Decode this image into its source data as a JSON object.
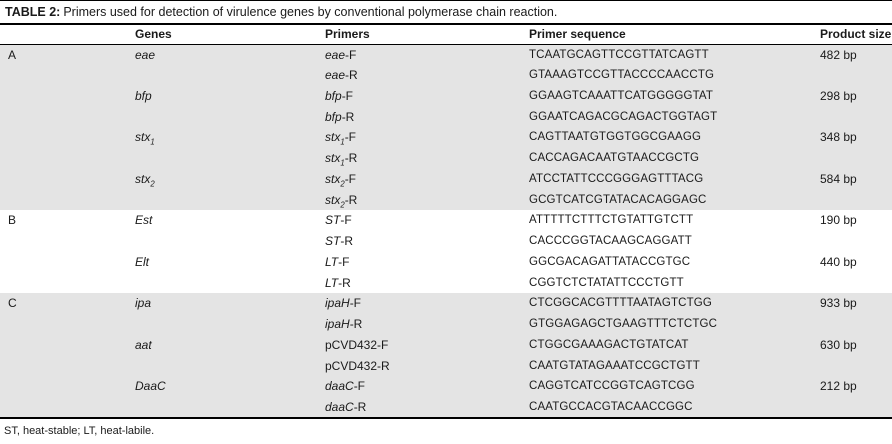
{
  "title": {
    "prefix": "TABLE 2:",
    "text": "Primers used for detection of virulence genes by conventional polymerase chain reaction."
  },
  "colors": {
    "row_shade": "#e4e4e4",
    "rule": "#000000",
    "text": "#1a1a1a"
  },
  "table": {
    "columns": [
      "",
      "Genes",
      "Primers",
      "Primer sequence",
      "Product size"
    ],
    "groups": [
      {
        "id": "A",
        "shaded": true,
        "rows": [
          {
            "gene": [
              {
                "t": "eae",
                "i": true
              }
            ],
            "primer": [
              {
                "t": "eae",
                "i": true
              },
              {
                "t": "-F"
              }
            ],
            "seq": "TCAATGCAGTTCCGTTATCAGTT",
            "size": "482 bp"
          },
          {
            "gene": [],
            "primer": [
              {
                "t": "eae",
                "i": true
              },
              {
                "t": "-R"
              }
            ],
            "seq": "GTAAAGTCCGTTACCCCAACCTG",
            "size": ""
          },
          {
            "gene": [
              {
                "t": "bfp",
                "i": true
              }
            ],
            "primer": [
              {
                "t": "bfp",
                "i": true
              },
              {
                "t": "-F"
              }
            ],
            "seq": "GGAAGTCAAATTCATGGGGGTAT",
            "size": "298 bp"
          },
          {
            "gene": [],
            "primer": [
              {
                "t": "bfp",
                "i": true
              },
              {
                "t": "-R"
              }
            ],
            "seq": "GGAATCAGACGCAGACTGGTAGT",
            "size": ""
          },
          {
            "gene": [
              {
                "t": "stx",
                "i": true
              },
              {
                "t": "1",
                "i": true,
                "sub": true
              }
            ],
            "primer": [
              {
                "t": "stx",
                "i": true
              },
              {
                "t": "1",
                "i": true,
                "sub": true
              },
              {
                "t": "-F"
              }
            ],
            "seq": "CAGTTAATGTGGTGGCGAAGG",
            "size": "348 bp"
          },
          {
            "gene": [],
            "primer": [
              {
                "t": "stx",
                "i": true
              },
              {
                "t": "1",
                "i": true,
                "sub": true
              },
              {
                "t": "-R"
              }
            ],
            "seq": "CACCAGACAATGTAACCGCTG",
            "size": ""
          },
          {
            "gene": [
              {
                "t": "stx",
                "i": true
              },
              {
                "t": "2",
                "i": true,
                "sub": true
              }
            ],
            "primer": [
              {
                "t": "stx",
                "i": true
              },
              {
                "t": "2",
                "i": true,
                "sub": true
              },
              {
                "t": "-F"
              }
            ],
            "seq": "ATCCTATTCCCGGGAGTTTACG",
            "size": "584 bp"
          },
          {
            "gene": [],
            "primer": [
              {
                "t": "stx",
                "i": true
              },
              {
                "t": "2",
                "i": true,
                "sub": true
              },
              {
                "t": "-R"
              }
            ],
            "seq": "GCGTCATCGTATACACAGGAGC",
            "size": ""
          }
        ]
      },
      {
        "id": "B",
        "shaded": false,
        "rows": [
          {
            "gene": [
              {
                "t": "Est",
                "i": true
              }
            ],
            "primer": [
              {
                "t": "ST",
                "i": true
              },
              {
                "t": "-F"
              }
            ],
            "seq": "ATTTTTCTTTCTGTATTGTCTT",
            "size": "190 bp"
          },
          {
            "gene": [],
            "primer": [
              {
                "t": "ST",
                "i": true
              },
              {
                "t": "-R"
              }
            ],
            "seq": "CACCCGGTACAAGCAGGATT",
            "size": ""
          },
          {
            "gene": [
              {
                "t": "Elt",
                "i": true
              }
            ],
            "primer": [
              {
                "t": "LT",
                "i": true
              },
              {
                "t": "-F"
              }
            ],
            "seq": "GGCGACAGATTATACCGTGC",
            "size": "440 bp"
          },
          {
            "gene": [],
            "primer": [
              {
                "t": "LT",
                "i": true
              },
              {
                "t": "-R"
              }
            ],
            "seq": "CGGTCTCTATATTCCCTGTT",
            "size": ""
          }
        ]
      },
      {
        "id": "C",
        "shaded": true,
        "rows": [
          {
            "gene": [
              {
                "t": "ipa",
                "i": true
              }
            ],
            "primer": [
              {
                "t": "ipaH",
                "i": true
              },
              {
                "t": "-F"
              }
            ],
            "seq": "CTCGGCACGTTTTAATAGTCTGG",
            "size": "933 bp"
          },
          {
            "gene": [],
            "primer": [
              {
                "t": "ipaH",
                "i": true
              },
              {
                "t": "-R"
              }
            ],
            "seq": "GTGGAGAGCTGAAGTTTCTCTGC",
            "size": ""
          },
          {
            "gene": [
              {
                "t": "aat",
                "i": true
              }
            ],
            "primer": [
              {
                "t": "pCVD432-F"
              }
            ],
            "seq": "CTGGCGAAAGACTGTATCAT",
            "size": "630 bp"
          },
          {
            "gene": [],
            "primer": [
              {
                "t": "pCVD432-R"
              }
            ],
            "seq": "CAATGTATAGAAATCCGCTGTT",
            "size": ""
          },
          {
            "gene": [
              {
                "t": "DaaC",
                "i": true
              }
            ],
            "primer": [
              {
                "t": "daaC",
                "i": true
              },
              {
                "t": "-F"
              }
            ],
            "seq": "CAGGTCATCCGGTCAGTCGG",
            "size": "212 bp"
          },
          {
            "gene": [],
            "primer": [
              {
                "t": "daaC",
                "i": true
              },
              {
                "t": "-R"
              }
            ],
            "seq": "CAATGCCACGTACAACCGGC",
            "size": ""
          }
        ]
      }
    ]
  },
  "footnote": "ST, heat-stable; LT, heat-labile."
}
